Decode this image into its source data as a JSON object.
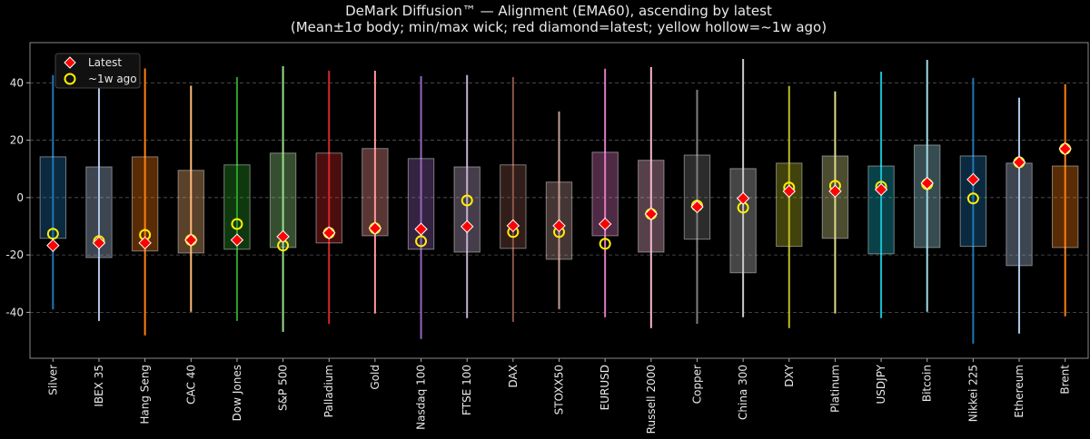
{
  "chart_data": {
    "type": "range-box",
    "title": "DeMark Diffusion™ — Alignment (EMA60), ascending by latest",
    "subtitle": "(Mean±1σ body; min/max wick; red diamond=latest; yellow hollow=~1w ago)",
    "categories": [
      "Silver",
      "IBEX 35",
      "Hang Seng",
      "CAC 40",
      "Dow Jones",
      "S&P 500",
      "Palladium",
      "Gold",
      "Nasdaq 100",
      "FTSE 100",
      "DAX",
      "STOXX50",
      "EURUSD",
      "Russell 2000",
      "Copper",
      "China 300",
      "DXY",
      "Platinum",
      "USDJPY",
      "Bitcoin",
      "Nikkei 225",
      "Ethereum",
      "Brent"
    ],
    "colors": [
      "#1f77b4",
      "#aec7e8",
      "#ff7f0e",
      "#ffbb78",
      "#2ca02c",
      "#98df8a",
      "#d62728",
      "#ff9896",
      "#9467bd",
      "#c5b0d5",
      "#8c564b",
      "#c49c94",
      "#e377c2",
      "#f7b6d2",
      "#7f7f7f",
      "#c7c7c7",
      "#bcbd22",
      "#dbdb8d",
      "#17becf",
      "#9edae5",
      "#1f77b4",
      "#aec7e8",
      "#ff7f0e"
    ],
    "box_low": [
      -14.2,
      -20.9,
      -18.6,
      -19.3,
      -18,
      -17.4,
      -15.8,
      -13.3,
      -18,
      -19,
      -17.7,
      -21.5,
      -13.3,
      -19,
      -14.5,
      -26.2,
      -17,
      -14.2,
      -19.6,
      -17.4,
      -17,
      -23.7,
      -17.4
    ],
    "box_high": [
      14.2,
      10.7,
      14.2,
      9.5,
      11.4,
      15.5,
      15.5,
      17.1,
      13.6,
      10.7,
      11.4,
      5.4,
      15.8,
      13,
      14.8,
      10.1,
      12,
      14.5,
      11,
      18.3,
      14.5,
      12,
      11
    ],
    "wick_min": [
      -39,
      -43,
      -48,
      -39.8,
      -43,
      -46.8,
      -44,
      -40.4,
      -49.3,
      -42,
      -43.3,
      -38.9,
      -41.7,
      -45.5,
      -44,
      -41.7,
      -45.5,
      -40.4,
      -42,
      -39.8,
      -50.9,
      -47.4,
      -41.4
    ],
    "wick_max": [
      42.7,
      40,
      45,
      39,
      42,
      45.8,
      44.2,
      44.2,
      42.3,
      42.7,
      42,
      30,
      44.9,
      45.5,
      37.6,
      48.3,
      38.9,
      37,
      43.9,
      48,
      41.7,
      34.8,
      39.5
    ],
    "series": [
      {
        "name": "Latest",
        "color": "#ff0000",
        "values": [
          -16.7,
          -15.8,
          -15.8,
          -14.8,
          -14.8,
          -13.6,
          -12.3,
          -10.7,
          -11,
          -10.1,
          -9.8,
          -9.8,
          -9.2,
          -5.7,
          -3.2,
          -0.3,
          2.2,
          2.2,
          2.8,
          5,
          6.3,
          12.3,
          17
        ]
      },
      {
        "name": "~1w ago",
        "color": "#ffee00",
        "values": [
          -12.6,
          -15.2,
          -13,
          -14.8,
          -9.2,
          -16.7,
          -12.3,
          -10.7,
          -15.2,
          -1,
          -12,
          -12,
          -16.1,
          -5.7,
          -2.8,
          -3.5,
          3.5,
          4.1,
          3.8,
          4.7,
          -0.3,
          12.3,
          17
        ]
      }
    ],
    "ylim": [
      -56,
      54
    ],
    "yticks": [
      -40,
      -20,
      0,
      20,
      40
    ],
    "grid": true,
    "legend": "upper left"
  }
}
